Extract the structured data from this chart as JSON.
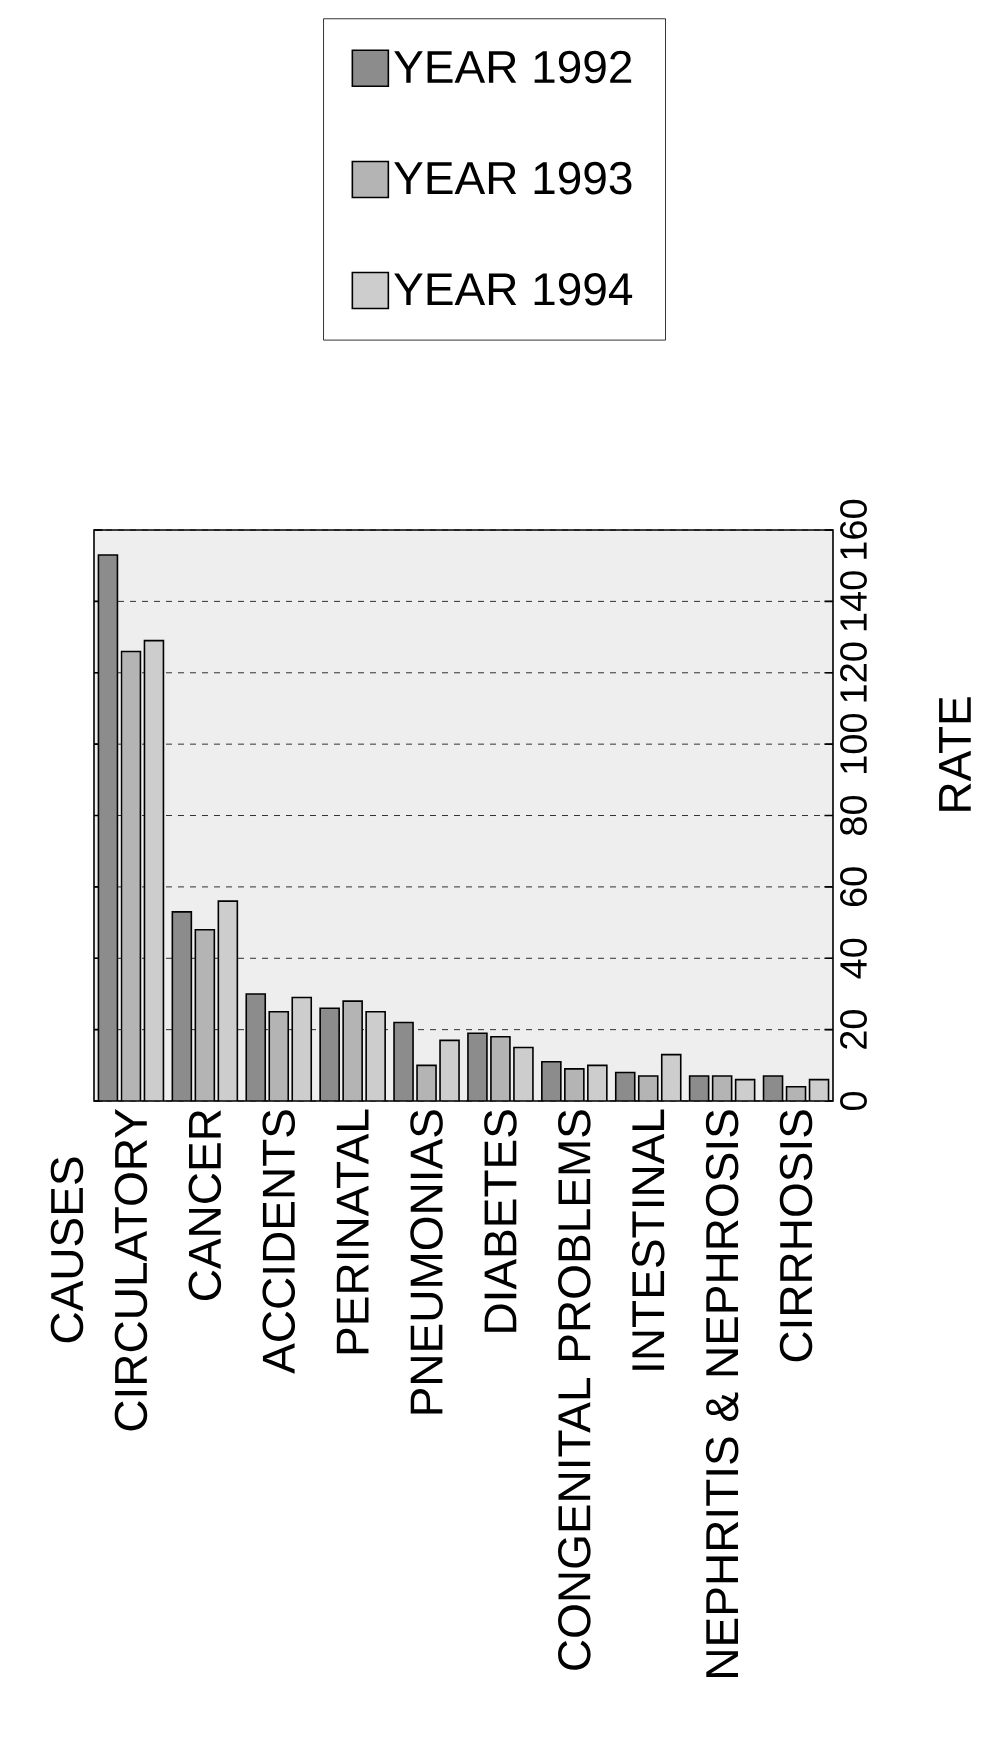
{
  "chart_data": {
    "type": "bar",
    "annotations": [
      "CAUSES"
    ],
    "ylabel": "RATE",
    "categories": [
      "CIRCULATORY",
      "CANCER",
      "ACCIDENTS",
      "PERINATAL",
      "PNEUMONIAS",
      "DIABETES",
      "CONGENITAL PROBLEMS",
      "INTESTINAL",
      "NEPHRITIS & NEPHROSIS",
      "CIRRHOSIS"
    ],
    "series": [
      {
        "name": "YEAR 1992",
        "color": "#8c8c8c",
        "values": [
          153,
          53,
          30,
          26,
          22,
          19,
          11,
          8,
          7,
          7
        ]
      },
      {
        "name": "YEAR 1993",
        "color": "#b4b4b4",
        "values": [
          126,
          48,
          25,
          28,
          10,
          18,
          9,
          7,
          7,
          4
        ]
      },
      {
        "name": "YEAR 1994",
        "color": "#cdcdcd",
        "values": [
          129,
          56,
          29,
          25,
          17,
          15,
          10,
          13,
          6,
          6
        ]
      }
    ],
    "ylim": [
      0,
      160
    ],
    "yticks": [
      0,
      20,
      40,
      60,
      80,
      100,
      120,
      140,
      160
    ],
    "grid": "y",
    "legend": "top"
  }
}
